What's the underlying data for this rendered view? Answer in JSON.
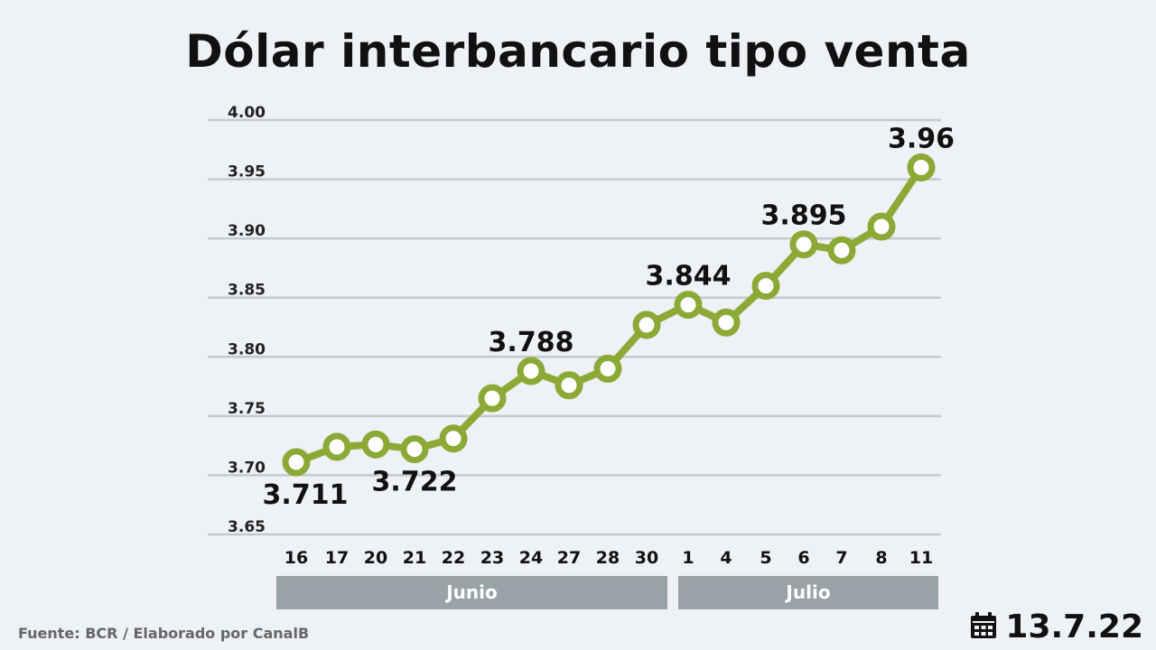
{
  "title": "Dólar interbancario tipo venta",
  "source": "Fuente: BCR / Elaborado por CanalB",
  "date": "13.7.22",
  "icons": {
    "date": "calendar-icon"
  },
  "colors": {
    "line": "#8aaa35",
    "grid": "#c6c9cc",
    "band": "#97a3a6",
    "background": "#eef1f5"
  },
  "months": [
    {
      "name": "Junio"
    },
    {
      "name": "Julio"
    }
  ],
  "chart_data": {
    "type": "line",
    "title": "Dólar interbancario tipo venta",
    "xlabel": "",
    "ylabel": "",
    "x": [
      "16",
      "17",
      "20",
      "21",
      "22",
      "23",
      "24",
      "27",
      "28",
      "30",
      "1",
      "4",
      "5",
      "6",
      "7",
      "8",
      "11"
    ],
    "series": [
      {
        "values": [
          3.711,
          3.724,
          3.726,
          3.722,
          3.731,
          3.765,
          3.788,
          3.776,
          3.79,
          3.827,
          3.844,
          3.829,
          3.86,
          3.895,
          3.89,
          3.91,
          3.96
        ]
      }
    ],
    "point_labels": [
      {
        "index": 0,
        "text": "3.711"
      },
      {
        "index": 3,
        "text": "3.722"
      },
      {
        "index": 6,
        "text": "3.788"
      },
      {
        "index": 10,
        "text": "3.844"
      },
      {
        "index": 13,
        "text": "3.895"
      },
      {
        "index": 16,
        "text": "3.96"
      }
    ],
    "yticks": [
      "4.00",
      "3.95",
      "3.90",
      "3.85",
      "3.80",
      "3.75",
      "3.70",
      "3.65"
    ],
    "ylim": [
      3.65,
      4.0
    ],
    "grid": true,
    "legend": "none"
  }
}
